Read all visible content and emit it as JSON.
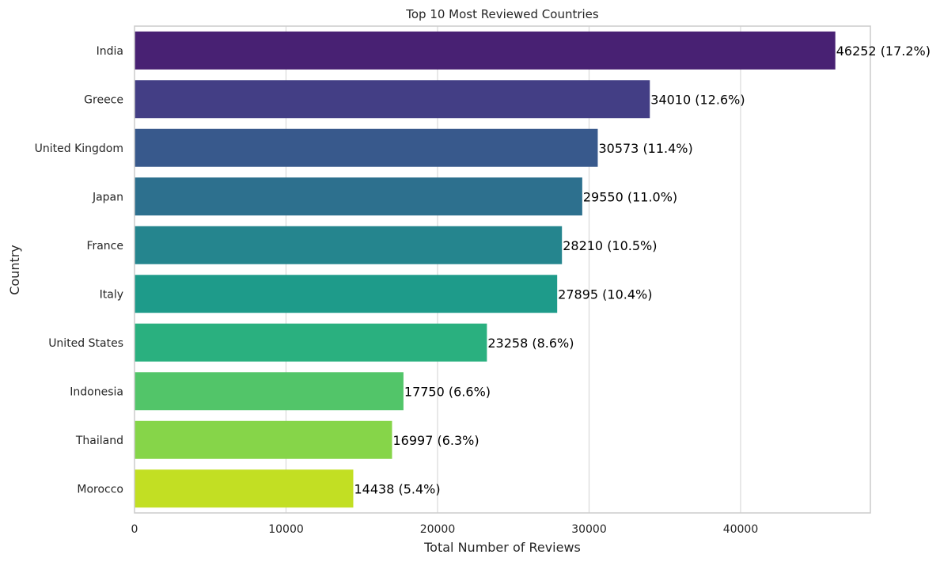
{
  "chart_data": {
    "type": "bar",
    "orientation": "horizontal",
    "title": "Top 10 Most Reviewed Countries",
    "xlabel": "Total Number of Reviews",
    "ylabel": "Country",
    "categories": [
      "India",
      "Greece",
      "United Kingdom",
      "Japan",
      "France",
      "Italy",
      "United States",
      "Indonesia",
      "Thailand",
      "Morocco"
    ],
    "values": [
      46252,
      34010,
      30573,
      29550,
      28210,
      27895,
      23258,
      17750,
      16997,
      14438
    ],
    "data_labels": [
      "46252 (17.2%)",
      "34010 (12.6%)",
      "30573 (11.4%)",
      "29550 (11.0%)",
      "28210 (10.5%)",
      "27895 (10.4%)",
      "23258 (8.6%)",
      "17750 (6.6%)",
      "16997 (6.3%)",
      "14438 (5.4%)"
    ],
    "colors": [
      "#482173",
      "#433e85",
      "#38598c",
      "#2d708e",
      "#25858e",
      "#1e9b8a",
      "#2ab07f",
      "#52c569",
      "#86d549",
      "#c2df23"
    ],
    "xlim": [
      0,
      48565
    ],
    "xticks": [
      0,
      10000,
      20000,
      30000,
      40000
    ],
    "xtick_labels": [
      "0",
      "10000",
      "20000",
      "30000",
      "40000"
    ],
    "grid": "vertical",
    "background": "#ffffff",
    "grid_color": "#d9d9d9",
    "spine_color": "#cccccc"
  }
}
